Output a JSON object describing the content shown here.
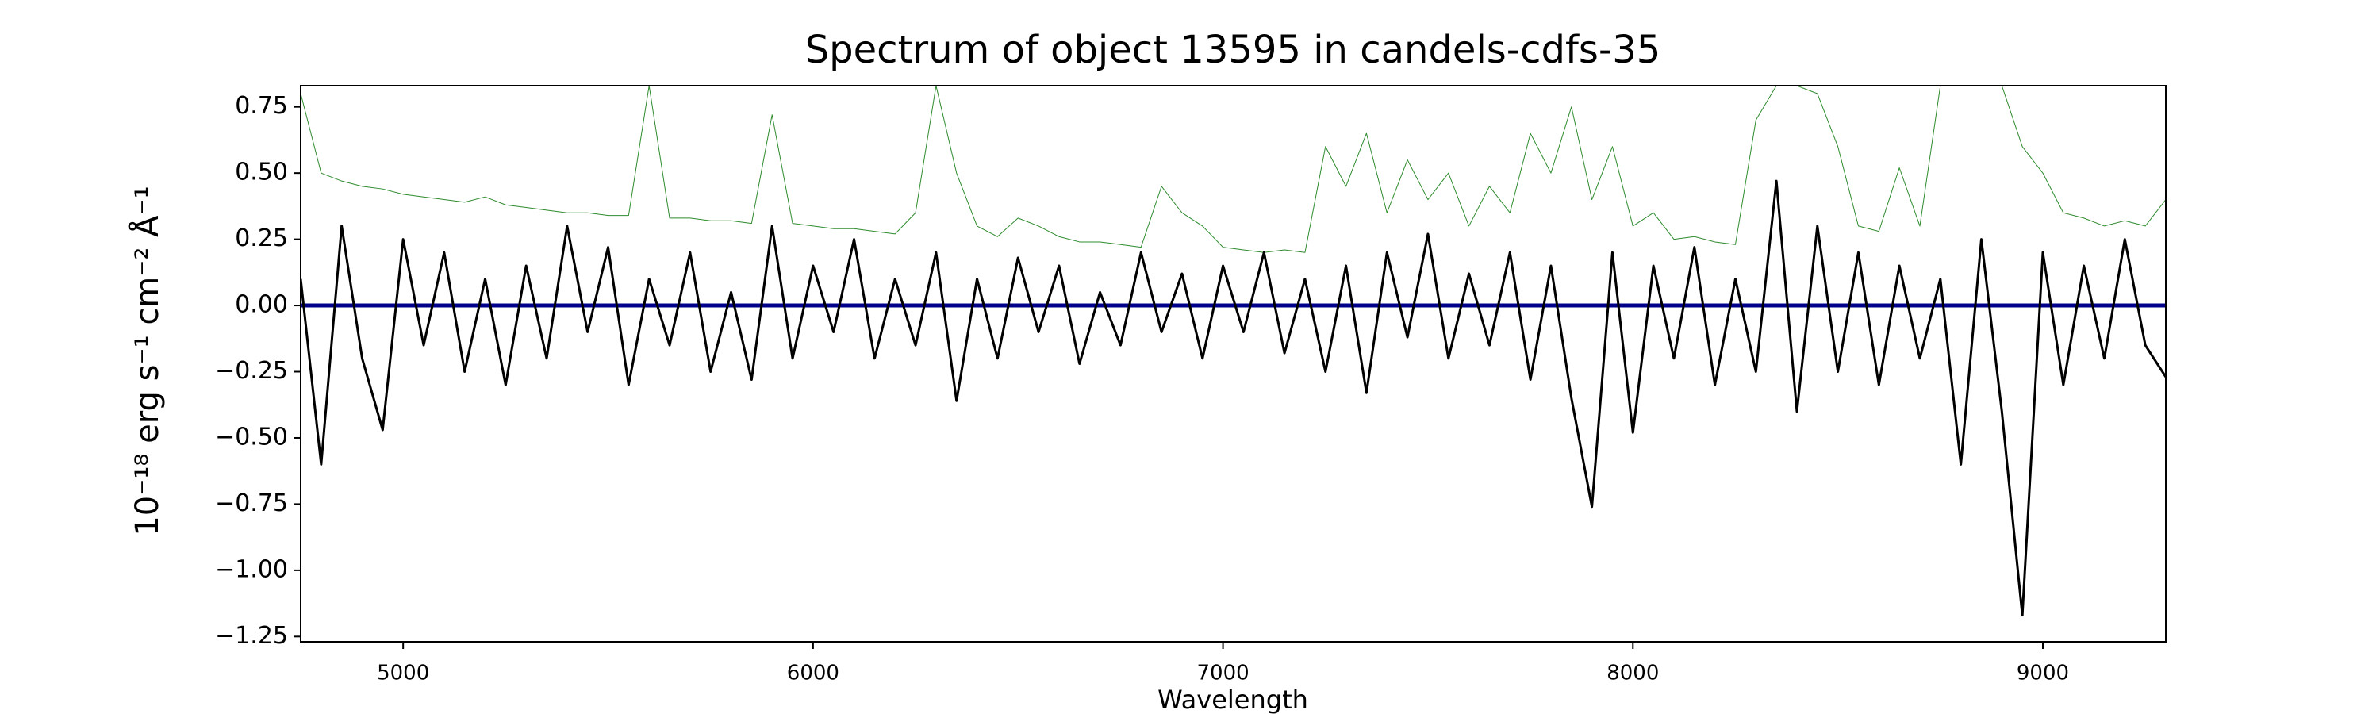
{
  "chart_data": {
    "type": "line",
    "title": "Spectrum of object 13595 in candels-cdfs-35",
    "x_label": "Wavelength",
    "y_label": "10⁻¹⁸ erg s⁻¹ cm⁻² Å⁻¹",
    "xlim": [
      4750,
      9300
    ],
    "ylim": [
      -1.27,
      0.83
    ],
    "xticks": [
      5000,
      6000,
      7000,
      8000,
      9000
    ],
    "yticks": [
      {
        "value": -1.25,
        "label": "−1.25"
      },
      {
        "value": -1.0,
        "label": "−1.00"
      },
      {
        "value": -0.75,
        "label": "−0.75"
      },
      {
        "value": -0.5,
        "label": "−0.50"
      },
      {
        "value": -0.25,
        "label": "−0.25"
      },
      {
        "value": 0,
        "label": "0.00"
      },
      {
        "value": 0.25,
        "label": "0.25"
      },
      {
        "value": 0.5,
        "label": "0.50"
      },
      {
        "value": 0.75,
        "label": "0.75"
      }
    ],
    "x": [
      4750,
      4800,
      4850,
      4900,
      4950,
      5000,
      5050,
      5100,
      5150,
      5200,
      5250,
      5300,
      5350,
      5400,
      5450,
      5500,
      5550,
      5600,
      5650,
      5700,
      5750,
      5800,
      5850,
      5900,
      5950,
      6000,
      6050,
      6100,
      6150,
      6200,
      6250,
      6300,
      6350,
      6400,
      6450,
      6500,
      6550,
      6600,
      6650,
      6700,
      6750,
      6800,
      6850,
      6900,
      6950,
      7000,
      7050,
      7100,
      7150,
      7200,
      7250,
      7300,
      7350,
      7400,
      7450,
      7500,
      7550,
      7600,
      7650,
      7700,
      7750,
      7800,
      7850,
      7900,
      7950,
      8000,
      8050,
      8100,
      8150,
      8200,
      8250,
      8300,
      8350,
      8400,
      8450,
      8500,
      8550,
      8600,
      8650,
      8700,
      8750,
      8800,
      8850,
      8900,
      8950,
      9000,
      9050,
      9100,
      9150,
      9200,
      9250,
      9300
    ],
    "series": [
      {
        "color": "#2e8b2e",
        "width": 1,
        "values": [
          0.8,
          0.5,
          0.47,
          0.45,
          0.44,
          0.42,
          0.41,
          0.4,
          0.39,
          0.41,
          0.38,
          0.37,
          0.36,
          0.35,
          0.35,
          0.34,
          0.34,
          0.83,
          0.33,
          0.33,
          0.32,
          0.32,
          0.31,
          0.72,
          0.31,
          0.3,
          0.29,
          0.29,
          0.28,
          0.27,
          0.35,
          0.83,
          0.5,
          0.3,
          0.26,
          0.33,
          0.3,
          0.26,
          0.24,
          0.24,
          0.23,
          0.22,
          0.45,
          0.35,
          0.3,
          0.22,
          0.21,
          0.2,
          0.21,
          0.2,
          0.6,
          0.45,
          0.65,
          0.35,
          0.55,
          0.4,
          0.5,
          0.3,
          0.45,
          0.35,
          0.65,
          0.5,
          0.75,
          0.4,
          0.6,
          0.3,
          0.35,
          0.25,
          0.26,
          0.24,
          0.23,
          0.7,
          0.83,
          0.83,
          0.8,
          0.6,
          0.3,
          0.28,
          0.52,
          0.3,
          0.83,
          0.83,
          0.83,
          0.83,
          0.6,
          0.5,
          0.35,
          0.33,
          0.3,
          0.32,
          0.3,
          0.4
        ]
      },
      {
        "color": "#00008b",
        "width": 5,
        "values": [
          0,
          0,
          0,
          0,
          0,
          0,
          0,
          0,
          0,
          0,
          0,
          0,
          0,
          0,
          0,
          0,
          0,
          0,
          0,
          0,
          0,
          0,
          0,
          0,
          0,
          0,
          0,
          0,
          0,
          0,
          0,
          0,
          0,
          0,
          0,
          0,
          0,
          0,
          0,
          0,
          0,
          0,
          0,
          0,
          0,
          0,
          0,
          0,
          0,
          0,
          0,
          0,
          0,
          0,
          0,
          0,
          0,
          0,
          0,
          0,
          0,
          0,
          0,
          0,
          0,
          0,
          0,
          0,
          0,
          0,
          0,
          0,
          0,
          0,
          0,
          0,
          0,
          0,
          0,
          0,
          0,
          0,
          0,
          0,
          0,
          0,
          0,
          0,
          0,
          0,
          0,
          0
        ]
      },
      {
        "color": "#000000",
        "width": 3,
        "values": [
          0.1,
          -0.6,
          0.3,
          -0.2,
          -0.47,
          0.25,
          -0.15,
          0.2,
          -0.25,
          0.1,
          -0.3,
          0.15,
          -0.2,
          0.3,
          -0.1,
          0.22,
          -0.3,
          0.1,
          -0.15,
          0.2,
          -0.25,
          0.05,
          -0.28,
          0.3,
          -0.2,
          0.15,
          -0.1,
          0.25,
          -0.2,
          0.1,
          -0.15,
          0.2,
          -0.36,
          0.1,
          -0.2,
          0.18,
          -0.1,
          0.15,
          -0.22,
          0.05,
          -0.15,
          0.2,
          -0.1,
          0.12,
          -0.2,
          0.15,
          -0.1,
          0.2,
          -0.18,
          0.1,
          -0.25,
          0.15,
          -0.33,
          0.2,
          -0.12,
          0.27,
          -0.2,
          0.12,
          -0.15,
          0.2,
          -0.28,
          0.15,
          -0.35,
          -0.76,
          0.2,
          -0.48,
          0.15,
          -0.2,
          0.22,
          -0.3,
          0.1,
          -0.25,
          0.47,
          -0.4,
          0.3,
          -0.25,
          0.2,
          -0.3,
          0.15,
          -0.2,
          0.1,
          -0.6,
          0.25,
          -0.4,
          -1.17,
          0.2,
          -0.3,
          0.15,
          -0.2,
          0.25,
          -0.15,
          -0.27
        ]
      }
    ]
  }
}
